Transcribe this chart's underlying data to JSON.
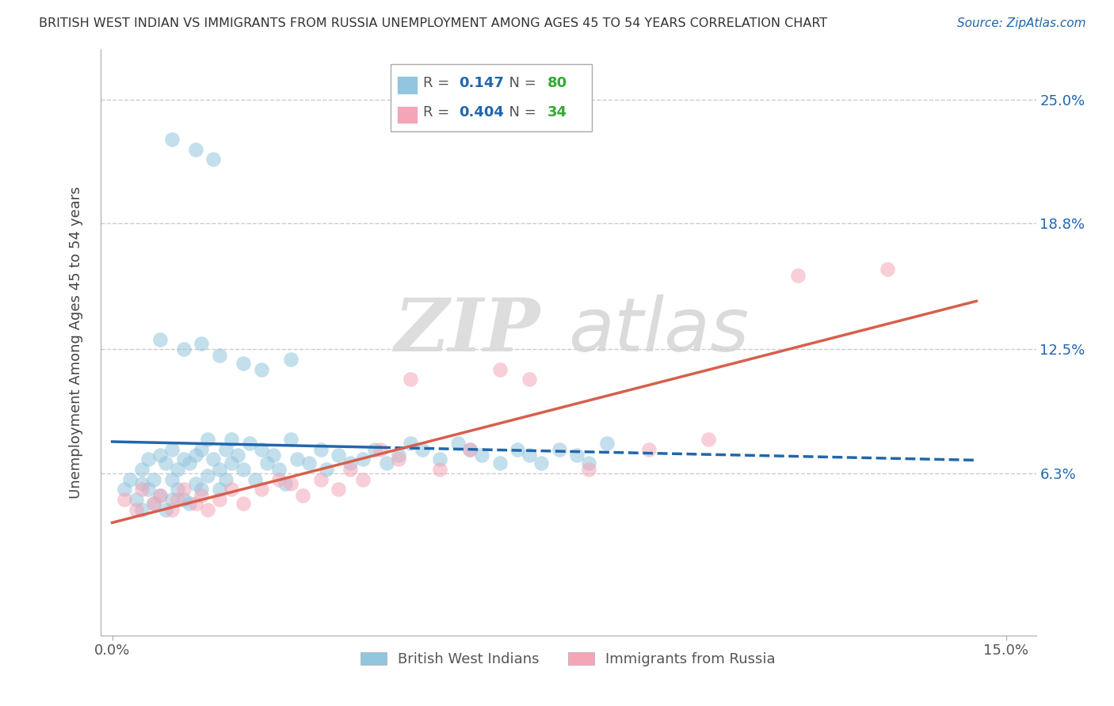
{
  "title": "BRITISH WEST INDIAN VS IMMIGRANTS FROM RUSSIA UNEMPLOYMENT AMONG AGES 45 TO 54 YEARS CORRELATION CHART",
  "source": "Source: ZipAtlas.com",
  "ylabel": "Unemployment Among Ages 45 to 54 years",
  "xlim": [
    -0.002,
    0.155
  ],
  "ylim": [
    -0.018,
    0.275
  ],
  "x_ticks": [
    0.0,
    0.15
  ],
  "x_tick_labels": [
    "0.0%",
    "15.0%"
  ],
  "y_tick_labels": [
    "6.3%",
    "12.5%",
    "18.8%",
    "25.0%"
  ],
  "y_ticks": [
    0.063,
    0.125,
    0.188,
    0.25
  ],
  "blue_R": 0.147,
  "blue_N": 80,
  "pink_R": 0.404,
  "pink_N": 34,
  "blue_color": "#92C5DE",
  "pink_color": "#F4A6B8",
  "blue_line_color": "#2166AC",
  "pink_line_color": "#D6604D",
  "watermark_zip": "ZIP",
  "watermark_atlas": "atlas",
  "legend_label_1": "British West Indians",
  "legend_label_2": "Immigrants from Russia",
  "blue_scatter_x": [
    0.002,
    0.003,
    0.004,
    0.005,
    0.005,
    0.005,
    0.006,
    0.006,
    0.007,
    0.007,
    0.008,
    0.008,
    0.009,
    0.009,
    0.01,
    0.01,
    0.01,
    0.011,
    0.011,
    0.012,
    0.012,
    0.013,
    0.013,
    0.014,
    0.014,
    0.015,
    0.015,
    0.016,
    0.016,
    0.017,
    0.018,
    0.018,
    0.019,
    0.019,
    0.02,
    0.02,
    0.021,
    0.022,
    0.023,
    0.024,
    0.025,
    0.026,
    0.027,
    0.028,
    0.029,
    0.03,
    0.031,
    0.033,
    0.035,
    0.036,
    0.038,
    0.04,
    0.042,
    0.044,
    0.046,
    0.048,
    0.05,
    0.052,
    0.055,
    0.058,
    0.06,
    0.062,
    0.065,
    0.068,
    0.07,
    0.072,
    0.075,
    0.078,
    0.08,
    0.083,
    0.008,
    0.012,
    0.015,
    0.018,
    0.022,
    0.025,
    0.03,
    0.01,
    0.014,
    0.017
  ],
  "blue_scatter_y": [
    0.055,
    0.06,
    0.05,
    0.058,
    0.065,
    0.045,
    0.07,
    0.055,
    0.06,
    0.048,
    0.072,
    0.052,
    0.068,
    0.045,
    0.075,
    0.06,
    0.05,
    0.065,
    0.055,
    0.07,
    0.05,
    0.068,
    0.048,
    0.072,
    0.058,
    0.075,
    0.055,
    0.08,
    0.062,
    0.07,
    0.065,
    0.055,
    0.075,
    0.06,
    0.08,
    0.068,
    0.072,
    0.065,
    0.078,
    0.06,
    0.075,
    0.068,
    0.072,
    0.065,
    0.058,
    0.08,
    0.07,
    0.068,
    0.075,
    0.065,
    0.072,
    0.068,
    0.07,
    0.075,
    0.068,
    0.072,
    0.078,
    0.075,
    0.07,
    0.078,
    0.075,
    0.072,
    0.068,
    0.075,
    0.072,
    0.068,
    0.075,
    0.072,
    0.068,
    0.078,
    0.13,
    0.125,
    0.128,
    0.122,
    0.118,
    0.115,
    0.12,
    0.23,
    0.225,
    0.22
  ],
  "pink_scatter_x": [
    0.002,
    0.004,
    0.005,
    0.007,
    0.008,
    0.01,
    0.011,
    0.012,
    0.014,
    0.015,
    0.016,
    0.018,
    0.02,
    0.022,
    0.025,
    0.028,
    0.03,
    0.032,
    0.035,
    0.038,
    0.04,
    0.042,
    0.045,
    0.048,
    0.05,
    0.055,
    0.06,
    0.065,
    0.07,
    0.08,
    0.09,
    0.1,
    0.115,
    0.13
  ],
  "pink_scatter_y": [
    0.05,
    0.045,
    0.055,
    0.048,
    0.052,
    0.045,
    0.05,
    0.055,
    0.048,
    0.052,
    0.045,
    0.05,
    0.055,
    0.048,
    0.055,
    0.06,
    0.058,
    0.052,
    0.06,
    0.055,
    0.065,
    0.06,
    0.075,
    0.07,
    0.11,
    0.065,
    0.075,
    0.115,
    0.11,
    0.065,
    0.075,
    0.08,
    0.162,
    0.165
  ],
  "blue_line_solid_end": 0.045,
  "blue_line_x_end": 0.145
}
